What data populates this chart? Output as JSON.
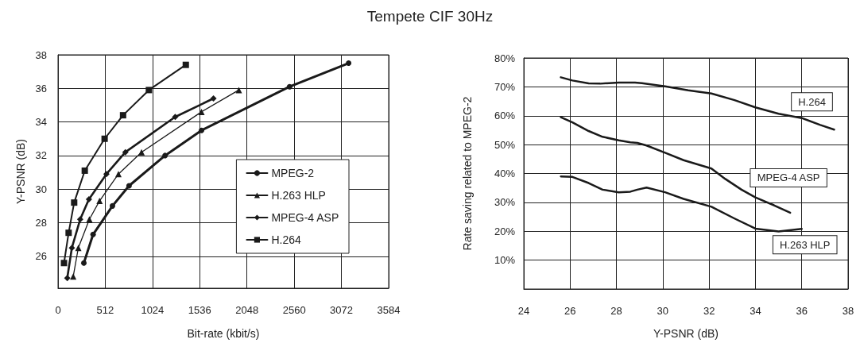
{
  "chart_data": [
    {
      "type": "line",
      "title": "Tempete CIF 30Hz",
      "xlabel": "Bit-rate (kbit/s)",
      "ylabel": "Y-PSNR (dB)",
      "xlim": [
        0,
        3584
      ],
      "xticks": [
        0,
        512,
        1024,
        1536,
        2048,
        2560,
        3072,
        3584
      ],
      "ylim": [
        24.1,
        38
      ],
      "yticks": [
        26,
        28,
        30,
        32,
        34,
        36,
        38
      ],
      "grid": true,
      "legend": "bottom right",
      "line_style": "solid",
      "series": [
        {
          "name": "MPEG-2",
          "color": "#1a1a1a",
          "marker": "circle",
          "x": [
            280,
            380,
            590,
            770,
            1160,
            1555,
            2510,
            3150
          ],
          "values": [
            25.6,
            27.3,
            29.0,
            30.2,
            32.0,
            33.5,
            36.1,
            37.5
          ]
        },
        {
          "name": "H.263 HLP",
          "color": "#1a1a1a",
          "marker": "triangle",
          "x": [
            165,
            220,
            340,
            450,
            655,
            905,
            1555,
            1960
          ],
          "values": [
            24.8,
            26.5,
            28.2,
            29.3,
            30.9,
            32.2,
            34.6,
            35.9
          ]
        },
        {
          "name": "MPEG-4 ASP",
          "color": "#1a1a1a",
          "marker": "diamond",
          "x": [
            100,
            150,
            240,
            335,
            525,
            730,
            1270,
            1685
          ],
          "values": [
            24.7,
            26.5,
            28.2,
            29.4,
            30.9,
            32.2,
            34.3,
            35.4
          ]
        },
        {
          "name": "H.264",
          "color": "#1a1a1a",
          "marker": "square",
          "x": [
            65,
            115,
            175,
            290,
            505,
            705,
            985,
            1385
          ],
          "values": [
            25.6,
            27.4,
            29.2,
            31.1,
            33.0,
            34.4,
            35.9,
            37.4
          ]
        }
      ]
    },
    {
      "type": "line",
      "xlabel": "Y-PSNR (dB)",
      "ylabel": "Rate saving related to MPEG-2",
      "xlim": [
        24,
        38
      ],
      "xticks": [
        24,
        26,
        28,
        30,
        32,
        34,
        36,
        38
      ],
      "ylim": [
        0,
        80
      ],
      "yticks": [
        {
          "value": 10,
          "label": "10%"
        },
        {
          "value": 20,
          "label": "20%"
        },
        {
          "value": 30,
          "label": "30%"
        },
        {
          "value": 40,
          "label": "40%"
        },
        {
          "value": 50,
          "label": "50%"
        },
        {
          "value": 60,
          "label": "60%"
        },
        {
          "value": 70,
          "label": "70%"
        },
        {
          "value": 80,
          "label": "80%"
        }
      ],
      "grid": true,
      "legend": false,
      "marker": "none",
      "line_style": "solid",
      "series": [
        {
          "name": "H.264",
          "color": "#1a1a1a",
          "x": [
            25.6,
            26.1,
            26.8,
            27.3,
            28.1,
            28.8,
            29.1,
            30.1,
            31.1,
            32.1,
            33.1,
            34.0,
            35.0,
            36.0,
            36.8,
            37.4
          ],
          "values": [
            73.3,
            72.2,
            71.2,
            71.1,
            71.5,
            71.5,
            71.3,
            70.2,
            68.8,
            67.7,
            65.4,
            62.9,
            60.7,
            59.2,
            56.8,
            55.2
          ]
        },
        {
          "name": "MPEG-4 ASP",
          "color": "#1a1a1a",
          "x": [
            25.6,
            26.1,
            26.8,
            27.4,
            28.1,
            28.6,
            28.9,
            29.3,
            30.1,
            30.9,
            32.1,
            32.7,
            33.4,
            34.0,
            34.8,
            35.5
          ],
          "values": [
            59.5,
            57.7,
            54.7,
            52.7,
            51.5,
            50.8,
            50.6,
            49.7,
            47.2,
            44.6,
            41.7,
            38.1,
            34.4,
            31.7,
            29.0,
            26.4
          ]
        },
        {
          "name": "H.263 HLP",
          "color": "#1a1a1a",
          "x": [
            25.6,
            26.1,
            26.8,
            27.4,
            28.1,
            28.6,
            28.9,
            29.3,
            30.1,
            30.9,
            32.1,
            33.1,
            34.0,
            35.0,
            36.0
          ],
          "values": [
            39.0,
            38.8,
            36.7,
            34.4,
            33.5,
            33.7,
            34.4,
            35.1,
            33.5,
            31.2,
            28.5,
            24.4,
            20.9,
            19.9,
            20.8
          ]
        }
      ]
    }
  ]
}
